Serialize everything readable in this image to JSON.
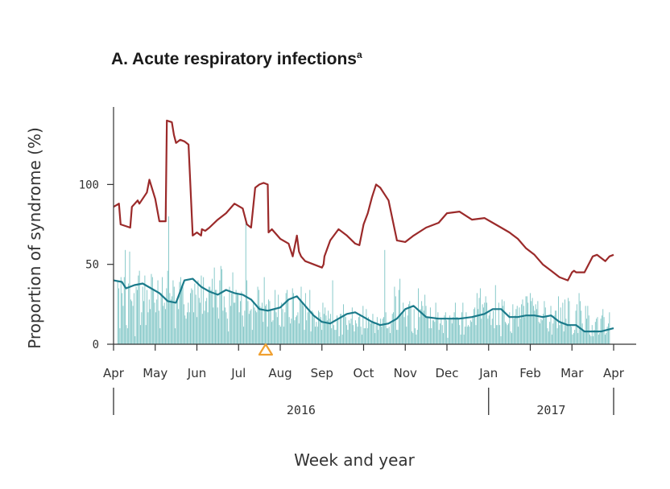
{
  "chart_data": {
    "type": "bar+line",
    "title": "A. Acute respiratory infections",
    "title_superscript": "a",
    "xlabel": "Week and year",
    "ylabel": "Proportion of syndrome (%)",
    "ylim": [
      0,
      145
    ],
    "yticks": [
      0,
      50,
      100
    ],
    "xlim": [
      0,
      12
    ],
    "month_ticks": [
      "Apr",
      "May",
      "Jun",
      "Jul",
      "Aug",
      "Sep",
      "Oct",
      "Nov",
      "Dec",
      "Jan",
      "Feb",
      "Mar",
      "Apr"
    ],
    "years": [
      {
        "label": "2016",
        "from": 0,
        "to": 9
      },
      {
        "label": "2017",
        "from": 9,
        "to": 12
      }
    ],
    "marker": {
      "shape": "triangle",
      "x": 3.65,
      "color": "#f0a030"
    },
    "grid": false,
    "legend": "none",
    "colors": {
      "bars": "#7cc4c4",
      "upper_threshold": "#9b2a2a",
      "baseline": "#1a7a8a"
    },
    "upper_threshold": {
      "x": [
        0,
        0.13,
        0.17,
        0.4,
        0.44,
        0.58,
        0.62,
        0.8,
        0.86,
        1.0,
        1.1,
        1.25,
        1.28,
        1.4,
        1.45,
        1.5,
        1.6,
        1.7,
        1.8,
        1.9,
        2.0,
        2.1,
        2.12,
        2.2,
        2.3,
        2.5,
        2.7,
        2.9,
        3.1,
        3.2,
        3.3,
        3.4,
        3.5,
        3.6,
        3.7,
        3.72,
        3.8,
        4.0,
        4.2,
        4.3,
        4.4,
        4.45,
        4.5,
        4.6,
        4.8,
        5.0,
        5.04,
        5.06,
        5.2,
        5.4,
        5.6,
        5.8,
        5.9,
        6.0,
        6.1,
        6.2,
        6.3,
        6.4,
        6.6,
        6.8,
        7.0,
        7.1,
        7.2,
        7.5,
        7.8,
        8.0,
        8.3,
        8.6,
        8.9,
        9.1,
        9.3,
        9.5,
        9.7,
        9.9,
        10.1,
        10.3,
        10.5,
        10.7,
        10.9,
        11.0,
        11.05,
        11.1,
        11.3,
        11.5,
        11.6,
        11.8,
        11.9,
        12.0
      ],
      "values": [
        86,
        88,
        75,
        73,
        86,
        90,
        88,
        95,
        103,
        91,
        77,
        77,
        140,
        139,
        131,
        126,
        128,
        127,
        125,
        68,
        70,
        68,
        72,
        71,
        73,
        78,
        82,
        88,
        85,
        75,
        73,
        98,
        100,
        101,
        100,
        70,
        72,
        66,
        63,
        55,
        68,
        58,
        55,
        52,
        50,
        48,
        50,
        55,
        65,
        72,
        68,
        63,
        62,
        75,
        82,
        92,
        100,
        98,
        90,
        65,
        64,
        66,
        68,
        73,
        76,
        82,
        83,
        78,
        79,
        76,
        73,
        70,
        66,
        60,
        56,
        50,
        46,
        42,
        40,
        45,
        46,
        45,
        45,
        55,
        56,
        52,
        55,
        56
      ]
    },
    "baseline": {
      "x": [
        0,
        0.2,
        0.3,
        0.5,
        0.7,
        0.9,
        1.1,
        1.3,
        1.5,
        1.7,
        1.9,
        2.1,
        2.3,
        2.5,
        2.7,
        2.9,
        3.1,
        3.3,
        3.5,
        3.7,
        4.0,
        4.2,
        4.4,
        4.6,
        4.8,
        5.0,
        5.2,
        5.4,
        5.6,
        5.8,
        6.0,
        6.2,
        6.4,
        6.6,
        6.8,
        7.0,
        7.2,
        7.5,
        7.8,
        8.0,
        8.3,
        8.6,
        8.9,
        9.1,
        9.3,
        9.5,
        9.7,
        9.9,
        10.1,
        10.3,
        10.5,
        10.7,
        10.9,
        11.1,
        11.3,
        11.5,
        11.7,
        11.85,
        12.0
      ],
      "values": [
        40,
        39,
        35,
        37,
        38,
        35,
        32,
        27,
        26,
        40,
        41,
        36,
        33,
        31,
        34,
        32,
        31,
        28,
        22,
        21,
        23,
        28,
        30,
        24,
        18,
        14,
        13,
        16,
        19,
        20,
        17,
        14,
        12,
        13,
        16,
        22,
        24,
        17,
        16,
        16,
        16,
        17,
        19,
        22,
        22,
        17,
        17,
        18,
        18,
        17,
        18,
        14,
        12,
        12,
        8,
        8,
        8,
        9,
        10
      ]
    },
    "bars": {
      "x_start": 0.1,
      "x_end": 11.9,
      "values": [
        40,
        35,
        10,
        42,
        32,
        24,
        42,
        59,
        12,
        10,
        38,
        58,
        28,
        27,
        24,
        32,
        5,
        36,
        34,
        43,
        46,
        12,
        20,
        36,
        27,
        43,
        12,
        34,
        20,
        28,
        22,
        44,
        42,
        34,
        26,
        20,
        28,
        40,
        21,
        10,
        32,
        42,
        24,
        26,
        22,
        35,
        46,
        80,
        32,
        28,
        30,
        40,
        36,
        10,
        26,
        27,
        22,
        39,
        42,
        36,
        36,
        25,
        18,
        16,
        20,
        26,
        20,
        32,
        35,
        34,
        20,
        38,
        31,
        17,
        40,
        29,
        26,
        43,
        19,
        42,
        21,
        27,
        29,
        20,
        36,
        36,
        34,
        41,
        23,
        48,
        34,
        34,
        23,
        16,
        40,
        49,
        47,
        21,
        30,
        23,
        20,
        16,
        8,
        36,
        24,
        32,
        45,
        26,
        26,
        34,
        32,
        31,
        20,
        27,
        33,
        18,
        11,
        21,
        79,
        40,
        27,
        19,
        21,
        22,
        9,
        26,
        23,
        21,
        20,
        36,
        34,
        24,
        23,
        26,
        14,
        42,
        24,
        25,
        11,
        28,
        27,
        22,
        14,
        15,
        22,
        34,
        20,
        17,
        31,
        12,
        11,
        26,
        22,
        11,
        20,
        32,
        34,
        28,
        17,
        13,
        16,
        35,
        32,
        15,
        17,
        18,
        20,
        13,
        28,
        36,
        26,
        24,
        9,
        32,
        15,
        20,
        22,
        34,
        8,
        21,
        20,
        17,
        11,
        14,
        11,
        21,
        20,
        17,
        9,
        26,
        19,
        23,
        18,
        15,
        21,
        16,
        19,
        10,
        40,
        12,
        9,
        9,
        18,
        16,
        5,
        19,
        19,
        6,
        25,
        19,
        17,
        12,
        9,
        15,
        13,
        16,
        23,
        12,
        8,
        15,
        13,
        11,
        17,
        19,
        11,
        6,
        24,
        10,
        10,
        22,
        10,
        17,
        14,
        13,
        14,
        19,
        13,
        7,
        12,
        17,
        9,
        12,
        16,
        11,
        16,
        17,
        59,
        20,
        10,
        10,
        11,
        7,
        13,
        19,
        20,
        36,
        30,
        9,
        9,
        34,
        41,
        18,
        20,
        26,
        17,
        21,
        11,
        18,
        25,
        27,
        23,
        8,
        7,
        22,
        10,
        6,
        9,
        35,
        17,
        22,
        27,
        24,
        21,
        31,
        24,
        17,
        17,
        10,
        23,
        10,
        15,
        15,
        14,
        26,
        16,
        20,
        9,
        13,
        16,
        12,
        7,
        18,
        20,
        15,
        4,
        16,
        18,
        16,
        13,
        17,
        20,
        26,
        17,
        17,
        16,
        12,
        6,
        20,
        26,
        6,
        11,
        20,
        11,
        12,
        11,
        15,
        14,
        17,
        22,
        23,
        12,
        32,
        22,
        29,
        35,
        16,
        25,
        23,
        26,
        30,
        26,
        16,
        18,
        20,
        12,
        16,
        21,
        10,
        37,
        12,
        12,
        26,
        12,
        5,
        28,
        24,
        27,
        14,
        13,
        12,
        13,
        20,
        8,
        7,
        25,
        16,
        18,
        22,
        24,
        11,
        23,
        16,
        25,
        28,
        24,
        17,
        30,
        30,
        26,
        18,
        32,
        27,
        29,
        24,
        21,
        25,
        22,
        27,
        14,
        13,
        16,
        15,
        19,
        27,
        23,
        18,
        10,
        8,
        14,
        24,
        6,
        13,
        18,
        21,
        21,
        10,
        30,
        12,
        23,
        13,
        26,
        8,
        28,
        16,
        12,
        29,
        27,
        12,
        11,
        6,
        7,
        9,
        21,
        25,
        7,
        32,
        27,
        21,
        13,
        9,
        8,
        24,
        16,
        24,
        18,
        6,
        5,
        12,
        5,
        9,
        14,
        16,
        17,
        6,
        7,
        16,
        18,
        22,
        17,
        6,
        7,
        11,
        13,
        20
      ]
    }
  }
}
